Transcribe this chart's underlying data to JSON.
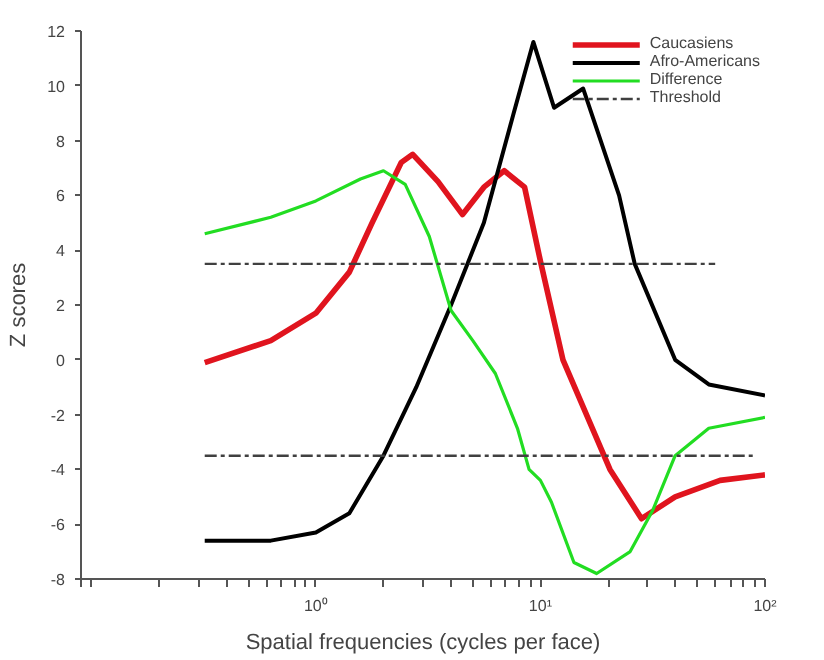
{
  "chart_data": {
    "type": "line",
    "xlabel": "Spatial frequencies (cycles per face)",
    "ylabel": "Z scores",
    "log": "x",
    "xlim": [
      0.09,
      100
    ],
    "xticks": [
      {
        "value": 1,
        "label": "10⁰"
      },
      {
        "value": 10,
        "label": "10¹"
      },
      {
        "value": 100,
        "label": "10²"
      }
    ],
    "ylim": [
      -8,
      12
    ],
    "yticks": [
      -8,
      -6,
      -4,
      -2,
      0,
      2,
      4,
      6,
      8,
      10,
      12
    ],
    "grid": false,
    "legend": "top right",
    "marker": "none",
    "series": [
      {
        "name": "Caucasiens",
        "color": "#e0141e",
        "x": [
          0.32,
          0.63,
          1,
          1.41,
          1.78,
          2.4,
          2.7,
          3.5,
          4.5,
          5.6,
          6.9,
          8.5,
          10,
          12.6,
          20.4,
          28.2,
          39.8,
          63.1,
          100
        ],
        "values": [
          -0.1,
          0.7,
          1.7,
          3.2,
          5,
          7.2,
          7.5,
          6.5,
          5.3,
          6.3,
          6.9,
          6.3,
          3.6,
          0,
          -4,
          -5.8,
          -5,
          -4.4,
          -4.2
        ]
      },
      {
        "name": "Afro-Americans",
        "color": "#000000",
        "x": [
          0.32,
          0.63,
          1,
          1.41,
          2,
          2.8,
          4,
          5.6,
          7.6,
          9.3,
          11.5,
          15.5,
          22.4,
          26.3,
          39.8,
          56.2,
          100
        ],
        "values": [
          -6.6,
          -6.6,
          -6.3,
          -5.6,
          -3.5,
          -1,
          2,
          5,
          9,
          11.6,
          9.2,
          9.9,
          6,
          3.5,
          0,
          -0.9,
          -1.3
        ]
      },
      {
        "name": "Difference",
        "color": "#22dd22",
        "x": [
          0.32,
          0.63,
          1,
          1.58,
          2,
          2.5,
          3.2,
          4,
          5,
          6.3,
          7.9,
          8.9,
          10,
          11.2,
          14.1,
          17.8,
          25.1,
          31.6,
          39.8,
          56.2,
          100
        ],
        "values": [
          4.6,
          5.2,
          5.8,
          6.6,
          6.9,
          6.4,
          4.5,
          1.8,
          0.7,
          -0.5,
          -2.5,
          -4,
          -4.4,
          -5.2,
          -7.4,
          -7.8,
          -7,
          -5.5,
          -3.5,
          -2.5,
          -2.1
        ]
      },
      {
        "name": "Threshold",
        "color": "#404040",
        "line_style": "dashed",
        "x": [
          0.32,
          60
        ],
        "values": [
          3.5,
          3.5
        ]
      },
      {
        "color": "#404040",
        "line_style": "dashed",
        "x": [
          0.32,
          90
        ],
        "values": [
          -3.5,
          -3.5
        ]
      }
    ]
  }
}
